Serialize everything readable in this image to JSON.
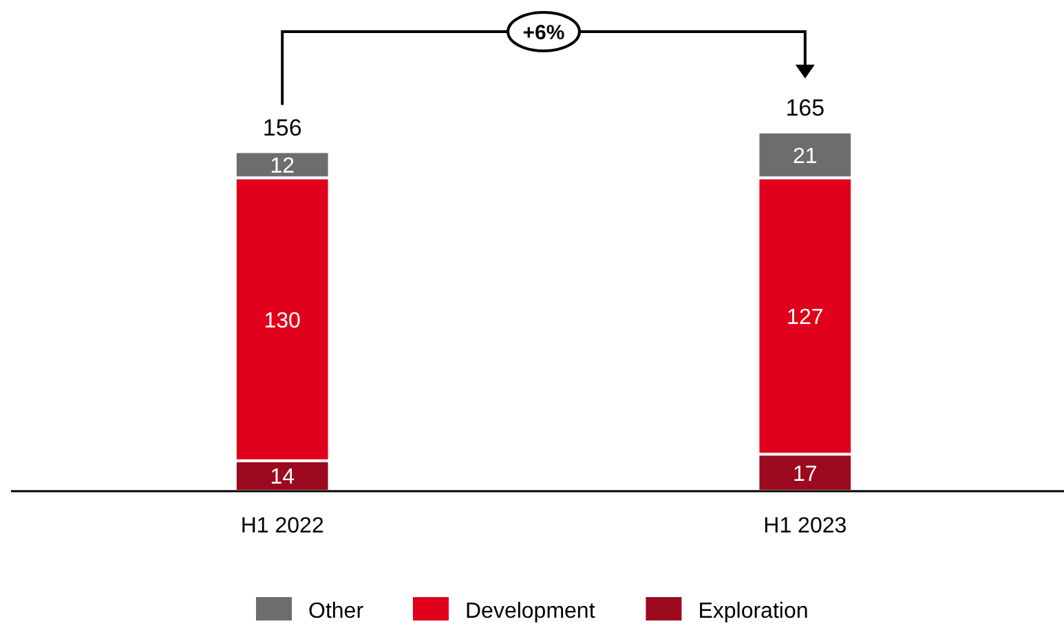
{
  "chart_data": {
    "type": "bar",
    "stacked": true,
    "data_labels": true,
    "legend": "bottom",
    "categories": [
      "H1 2022",
      "H1 2023"
    ],
    "series": [
      {
        "name": "Exploration",
        "color": "#9b0a1e",
        "values": [
          14,
          17
        ]
      },
      {
        "name": "Development",
        "color": "#e0001b",
        "values": [
          130,
          127
        ]
      },
      {
        "name": "Other",
        "color": "#6d6d6d",
        "values": [
          12,
          21
        ]
      }
    ],
    "totals": [
      "156",
      "165"
    ],
    "annotations": [
      "+6%"
    ]
  }
}
